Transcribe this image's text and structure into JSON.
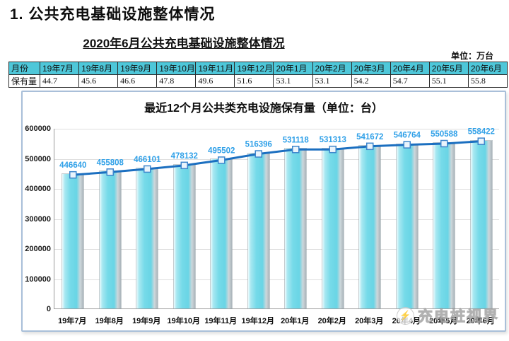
{
  "header": {
    "title": "1. 公共充电基础设施整体情况"
  },
  "table_section": {
    "title": "2020年6月公共充电基础设施整体情况",
    "unit_note": "单位：万台",
    "header_row": [
      "月份",
      "19年7月",
      "19年8月",
      "19年9月",
      "19年10月",
      "19年11月",
      "19年12月",
      "20年1月",
      "20年2月",
      "20年3月",
      "20年4月",
      "20年5月",
      "20年6月"
    ],
    "data_row_label": "保有量",
    "data_row_values": [
      "44.7",
      "45.6",
      "46.6",
      "47.8",
      "49.6",
      "51.6",
      "53.1",
      "53.1",
      "54.2",
      "54.7",
      "55.1",
      "55.8"
    ]
  },
  "chart_data": {
    "type": "bar",
    "overlay": "line",
    "title": "最近12个月公共类充电设施保有量（单位：台）",
    "categories": [
      "19年7月",
      "19年8月",
      "19年9月",
      "19年10月",
      "19年11月",
      "19年12月",
      "20年1月",
      "20年2月",
      "20年3月",
      "20年4月",
      "20年5月",
      "20年6月"
    ],
    "values": [
      446640,
      455808,
      466101,
      478132,
      495502,
      516396,
      531118,
      531313,
      541672,
      546764,
      550588,
      558422
    ],
    "ylim": [
      0,
      600000
    ],
    "yticks": [
      600000,
      500000,
      400000,
      300000,
      200000,
      100000,
      0
    ],
    "grid": true,
    "legend": "none",
    "colors": {
      "bar": "#6FD8E7",
      "line": "#1B6FC0",
      "marker_fill": "#EAF4FC",
      "marker_border": "#3E86CC",
      "value_label": "#2FA0E8",
      "table_header_bg": "#4EC7D9",
      "chart_border": "#A9BFD9",
      "gridline": "#DEDEDE"
    }
  },
  "watermark": {
    "icon": "lightning-bolt",
    "text": "充电桩视界"
  }
}
